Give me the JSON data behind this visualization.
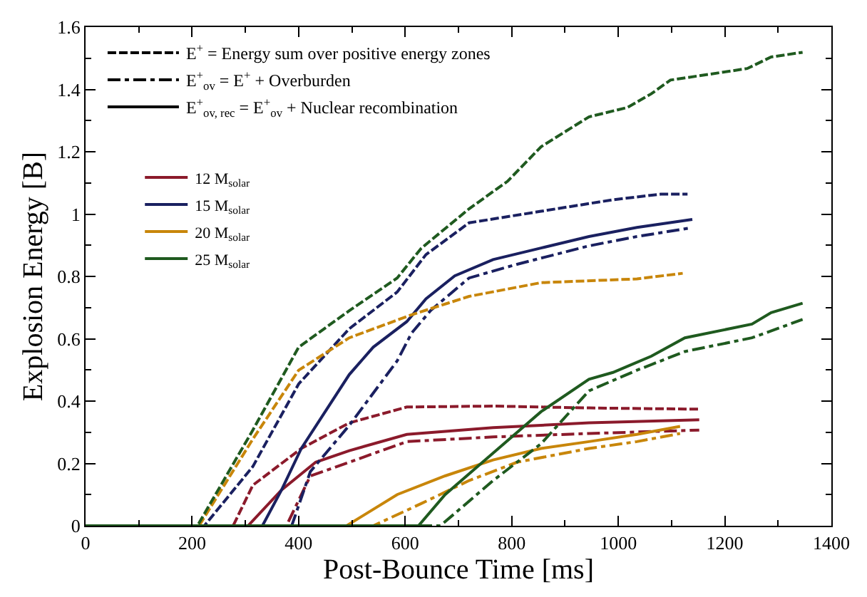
{
  "chart_data": {
    "type": "line",
    "xlabel": "Post-Bounce Time [ms]",
    "ylabel": "Explosion Energy [B]",
    "xlim": [
      0,
      1400
    ],
    "xticks": [
      0,
      200,
      400,
      600,
      800,
      1000,
      1200,
      1400
    ],
    "ylim": [
      0,
      1.6
    ],
    "yticks": [
      0,
      0.2,
      0.4,
      0.6,
      0.8,
      1,
      1.2,
      1.4,
      1.6
    ],
    "grid": false,
    "legend": "top left",
    "marker": "none",
    "series": [
      {
        "name": "E$^{+}$ = Energy sum over positive energy zones",
        "color": "#000000",
        "line_style": "dashed",
        "values": [
          null
        ]
      },
      {
        "name": "E$^{+}$$_{ov}$ = E$^{+}$ + Overburden",
        "color": "#000000",
        "line_style": "dashdot",
        "values": [
          null
        ]
      },
      {
        "name": "E$^{+}$$_{ov, rec}$ = E$^{+}$$_{ov}$ + Nuclear recombination",
        "color": "#000000",
        "line_style": "solid",
        "values": [
          null
        ]
      },
      {
        "color": "#8b1a2b",
        "line_style": "dashed",
        "x": [
          0,
          277,
          314,
          405,
          495,
          603,
          765,
          945,
          1152
        ],
        "values": [
          0,
          0,
          0.13,
          0.248,
          0.33,
          0.381,
          0.384,
          0.378,
          0.374
        ]
      },
      {
        "color": "#8b1a2b",
        "line_style": "dashdot",
        "x": [
          0,
          377,
          422,
          495,
          603,
          765,
          945,
          1152
        ],
        "values": [
          0,
          0,
          0.16,
          0.204,
          0.27,
          0.285,
          0.296,
          0.307
        ]
      },
      {
        "name": "12 M$_{solar}$",
        "color": "#8b1a2b",
        "line_style": "solid",
        "x": [
          0,
          305,
          368,
          432,
          495,
          603,
          765,
          945,
          1152
        ],
        "values": [
          0,
          0,
          0.115,
          0.204,
          0.241,
          0.293,
          0.315,
          0.33,
          0.34
        ]
      },
      {
        "color": "#1a2060",
        "line_style": "dashed",
        "x": [
          0,
          223,
          314,
          400,
          495,
          585,
          639,
          720,
          855,
          990,
          1080,
          1130
        ],
        "values": [
          0,
          0,
          0.19,
          0.455,
          0.632,
          0.75,
          0.87,
          0.972,
          1.009,
          1.046,
          1.064,
          1.064
        ]
      },
      {
        "color": "#1a2060",
        "line_style": "dashdot",
        "x": [
          0,
          387,
          422,
          495,
          585,
          612,
          648,
          720,
          810,
          945,
          1035,
          1134
        ],
        "values": [
          0,
          0,
          0.174,
          0.322,
          0.529,
          0.618,
          0.691,
          0.795,
          0.839,
          0.898,
          0.928,
          0.955
        ]
      },
      {
        "name": "15 M$_{solar}$",
        "color": "#1a2060",
        "line_style": "solid",
        "x": [
          0,
          332,
          368,
          405,
          495,
          540,
          603,
          639,
          693,
          765,
          855,
          945,
          1035,
          1139
        ],
        "values": [
          0,
          0,
          0.115,
          0.248,
          0.485,
          0.573,
          0.655,
          0.728,
          0.802,
          0.854,
          0.891,
          0.928,
          0.957,
          0.983
        ]
      },
      {
        "color": "#c8860a",
        "line_style": "dashed",
        "x": [
          0,
          213,
          314,
          400,
          495,
          612,
          720,
          855,
          1035,
          1121
        ],
        "values": [
          0,
          0,
          0.278,
          0.499,
          0.603,
          0.677,
          0.736,
          0.78,
          0.792,
          0.81
        ]
      },
      {
        "color": "#c8860a",
        "line_style": "dashdot",
        "x": [
          0,
          540,
          630,
          720,
          810,
          945,
          1035,
          1116
        ],
        "values": [
          0,
          0,
          0.071,
          0.145,
          0.204,
          0.248,
          0.27,
          0.296
        ]
      },
      {
        "name": "20 M$_{solar}$",
        "color": "#c8860a",
        "line_style": "solid",
        "x": [
          0,
          490,
          585,
          675,
          765,
          855,
          945,
          1035,
          1116
        ],
        "values": [
          0,
          0,
          0.1,
          0.16,
          0.211,
          0.248,
          0.27,
          0.293,
          0.319
        ]
      },
      {
        "color": "#1f5a1f",
        "line_style": "dashed",
        "x": [
          0,
          210,
          314,
          400,
          495,
          585,
          630,
          720,
          792,
          855,
          945,
          1017,
          1062,
          1098,
          1215,
          1242,
          1287,
          1346
        ],
        "values": [
          0,
          0,
          0.307,
          0.573,
          0.69,
          0.795,
          0.89,
          1.017,
          1.105,
          1.216,
          1.312,
          1.342,
          1.386,
          1.43,
          1.46,
          1.467,
          1.504,
          1.519
        ]
      },
      {
        "color": "#1f5a1f",
        "line_style": "dashdot",
        "x": [
          0,
          666,
          765,
          855,
          945,
          1035,
          1125,
          1251,
          1346
        ],
        "values": [
          0,
          0,
          0.145,
          0.263,
          0.433,
          0.499,
          0.559,
          0.603,
          0.662
        ]
      },
      {
        "name": "25 M$_{solar}$",
        "color": "#1f5a1f",
        "line_style": "solid",
        "x": [
          0,
          625,
          675,
          765,
          855,
          945,
          990,
          1062,
          1125,
          1251,
          1287,
          1346
        ],
        "values": [
          0,
          0,
          0.1,
          0.233,
          0.366,
          0.47,
          0.492,
          0.544,
          0.603,
          0.647,
          0.684,
          0.714
        ]
      }
    ]
  }
}
